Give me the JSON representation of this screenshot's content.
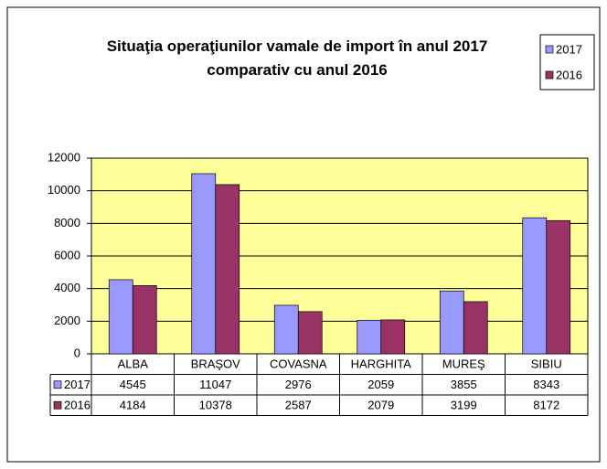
{
  "chart_data": {
    "type": "bar",
    "title": "Situaţia operaţiunilor vamale de import în anul 2017\ncomparativ cu anul 2016",
    "categories": [
      "ALBA",
      "BRAŞOV",
      "COVASNA",
      "HARGHITA",
      "MUREŞ",
      "SIBIU"
    ],
    "series": [
      {
        "name": "2017",
        "color": "#9999ff",
        "values": [
          4545,
          11047,
          2976,
          2059,
          3855,
          8343
        ]
      },
      {
        "name": "2016",
        "color": "#993366",
        "values": [
          4184,
          10378,
          2587,
          2079,
          3199,
          8172
        ]
      }
    ],
    "ylim": [
      0,
      12000
    ],
    "yticks": [
      0,
      2000,
      4000,
      6000,
      8000,
      10000,
      12000
    ],
    "grid": true,
    "legend": "top-right",
    "plot_background": "#ffff99",
    "data_table": true
  }
}
